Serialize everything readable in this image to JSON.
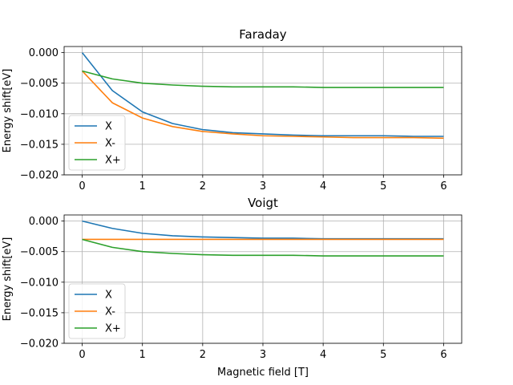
{
  "chart_data": [
    {
      "type": "line",
      "title": "Faraday",
      "xlabel": "",
      "ylabel": "Energy shift[eV]",
      "xlim": [
        -0.3,
        6.3
      ],
      "ylim": [
        -0.02,
        0.001
      ],
      "xticks": [
        0,
        1,
        2,
        3,
        4,
        5,
        6
      ],
      "xtick_labels": [
        "0",
        "1",
        "2",
        "3",
        "4",
        "5",
        "6"
      ],
      "yticks": [
        0.0,
        -0.005,
        -0.01,
        -0.015,
        -0.02
      ],
      "ytick_labels": [
        "0.000",
        "−0.005",
        "−0.010",
        "−0.015",
        "−0.020"
      ],
      "grid": true,
      "legend": "lower-left",
      "x": [
        0,
        0.5,
        1,
        1.5,
        2,
        2.5,
        3,
        3.5,
        4,
        4.5,
        5,
        5.5,
        6
      ],
      "series": [
        {
          "name": "X",
          "color": "#1f77b4",
          "values": [
            0.0,
            -0.0062,
            -0.0097,
            -0.0116,
            -0.0126,
            -0.0131,
            -0.0133,
            -0.0135,
            -0.0136,
            -0.0136,
            -0.0136,
            -0.0137,
            -0.0137
          ]
        },
        {
          "name": "X-",
          "color": "#ff7f0e",
          "values": [
            -0.003,
            -0.0082,
            -0.0107,
            -0.0121,
            -0.0129,
            -0.0133,
            -0.0136,
            -0.0137,
            -0.0138,
            -0.0139,
            -0.0139,
            -0.0139,
            -0.014
          ]
        },
        {
          "name": "X+",
          "color": "#2ca02c",
          "values": [
            -0.003,
            -0.0043,
            -0.005,
            -0.0053,
            -0.0055,
            -0.0056,
            -0.0056,
            -0.0056,
            -0.0057,
            -0.0057,
            -0.0057,
            -0.0057,
            -0.0057
          ]
        }
      ]
    },
    {
      "type": "line",
      "title": "Voigt",
      "xlabel": "Magnetic field [T]",
      "ylabel": "Energy shift[eV]",
      "xlim": [
        -0.3,
        6.3
      ],
      "ylim": [
        -0.02,
        0.001
      ],
      "xticks": [
        0,
        1,
        2,
        3,
        4,
        5,
        6
      ],
      "xtick_labels": [
        "0",
        "1",
        "2",
        "3",
        "4",
        "5",
        "6"
      ],
      "yticks": [
        0.0,
        -0.005,
        -0.01,
        -0.015,
        -0.02
      ],
      "ytick_labels": [
        "0.000",
        "−0.005",
        "−0.010",
        "−0.015",
        "−0.020"
      ],
      "grid": true,
      "legend": "lower-left",
      "x": [
        0,
        0.5,
        1,
        1.5,
        2,
        2.5,
        3,
        3.5,
        4,
        4.5,
        5,
        5.5,
        6
      ],
      "series": [
        {
          "name": "X",
          "color": "#1f77b4",
          "values": [
            0.0,
            -0.0012,
            -0.002,
            -0.0024,
            -0.0026,
            -0.0027,
            -0.0028,
            -0.0028,
            -0.0029,
            -0.0029,
            -0.0029,
            -0.0029,
            -0.0029
          ]
        },
        {
          "name": "X-",
          "color": "#ff7f0e",
          "values": [
            -0.003,
            -0.003,
            -0.003,
            -0.003,
            -0.003,
            -0.003,
            -0.003,
            -0.003,
            -0.003,
            -0.003,
            -0.003,
            -0.003,
            -0.003
          ]
        },
        {
          "name": "X+",
          "color": "#2ca02c",
          "values": [
            -0.003,
            -0.0043,
            -0.005,
            -0.0053,
            -0.0055,
            -0.0056,
            -0.0056,
            -0.0056,
            -0.0057,
            -0.0057,
            -0.0057,
            -0.0057,
            -0.0057
          ]
        }
      ]
    }
  ]
}
